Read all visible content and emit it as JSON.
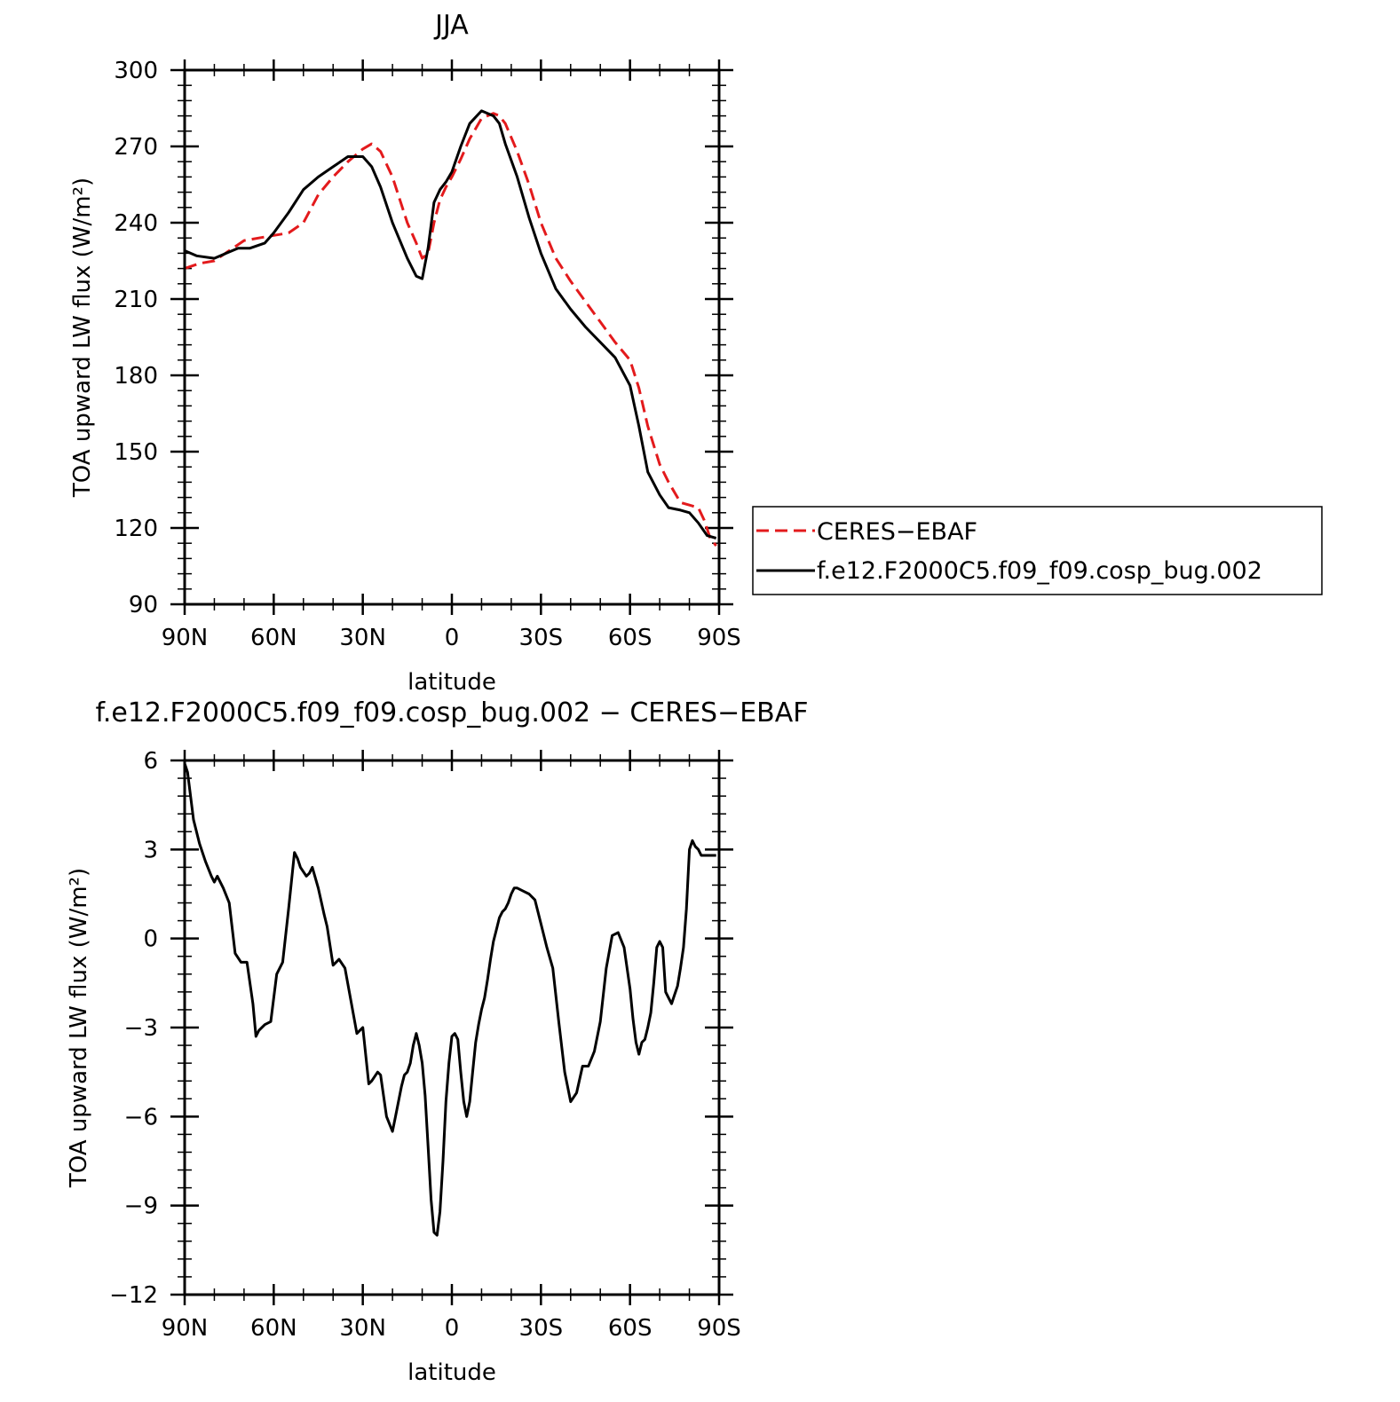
{
  "chart_data": [
    {
      "type": "line",
      "title": "JJA",
      "xlabel": "latitude",
      "ylabel": "TOA upward LW flux (W/m²)",
      "xlim": [
        90,
        -90
      ],
      "ylim": [
        90,
        300
      ],
      "xticks": [
        90,
        60,
        30,
        0,
        -30,
        -60,
        -90
      ],
      "xtick_labels": [
        "90N",
        "60N",
        "30N",
        "0",
        "30S",
        "60S",
        "90S"
      ],
      "yticks": [
        90,
        120,
        150,
        180,
        210,
        240,
        270,
        300
      ],
      "ytick_labels": [
        "90",
        "120",
        "150",
        "180",
        "210",
        "240",
        "270",
        "300"
      ],
      "legend": {
        "placement": "right",
        "entries": [
          "CERES−EBAF",
          "f.e12.F2000C5.f09_f09.cosp_bug.002"
        ]
      },
      "series": [
        {
          "name": "CERES−EBAF",
          "color": "#e31a1c",
          "style": "dashed",
          "x": [
            90,
            85,
            80,
            75,
            70,
            65,
            60,
            55,
            50,
            45,
            40,
            35,
            30,
            27,
            24,
            20,
            15,
            12,
            10,
            8,
            6,
            4,
            2,
            0,
            -3,
            -6,
            -10,
            -14,
            -16,
            -18,
            -22,
            -26,
            -30,
            -35,
            -40,
            -45,
            -50,
            -55,
            -60,
            -63,
            -66,
            -70,
            -73,
            -77,
            -80,
            -83,
            -85,
            -87,
            -89
          ],
          "y": [
            222,
            224,
            225,
            229,
            233,
            234,
            235,
            236,
            240,
            251,
            258,
            264,
            269,
            271,
            268,
            258,
            240,
            232,
            226,
            228,
            240,
            249,
            254,
            258,
            265,
            273,
            281,
            283,
            282,
            279,
            268,
            255,
            240,
            226,
            217,
            209,
            201,
            193,
            186,
            175,
            160,
            145,
            138,
            130,
            129,
            128,
            123,
            116,
            113
          ]
        },
        {
          "name": "f.e12.F2000C5.f09_f09.cosp_bug.002",
          "color": "#000000",
          "style": "solid",
          "x": [
            90,
            86,
            80,
            76,
            72,
            68,
            63,
            60,
            55,
            50,
            45,
            40,
            35,
            30,
            27,
            24,
            20,
            15,
            12,
            10,
            8,
            6,
            4,
            2,
            0,
            -3,
            -6,
            -10,
            -14,
            -16,
            -18,
            -22,
            -26,
            -30,
            -35,
            -40,
            -45,
            -50,
            -55,
            -60,
            -63,
            -66,
            -70,
            -73,
            -77,
            -80,
            -83,
            -86,
            -89
          ],
          "y": [
            229,
            227,
            226,
            228,
            230,
            230,
            232,
            236,
            244,
            253,
            258,
            262,
            266,
            266,
            262,
            254,
            240,
            226,
            219,
            218,
            230,
            248,
            253,
            256,
            260,
            270,
            279,
            284,
            282,
            279,
            271,
            258,
            242,
            228,
            214,
            206,
            199,
            193,
            187,
            176,
            160,
            142,
            133,
            128,
            127,
            126,
            122,
            117,
            116
          ]
        }
      ]
    },
    {
      "type": "line",
      "title": "f.e12.F2000C5.f09_f09.cosp_bug.002 − CERES−EBAF",
      "xlabel": "latitude",
      "ylabel": "TOA upward LW flux (W/m²)",
      "xlim": [
        90,
        -90
      ],
      "ylim": [
        -12,
        6
      ],
      "xticks": [
        90,
        60,
        30,
        0,
        -30,
        -60,
        -90
      ],
      "xtick_labels": [
        "90N",
        "60N",
        "30N",
        "0",
        "30S",
        "60S",
        "90S"
      ],
      "yticks": [
        -12,
        -9,
        -6,
        -3,
        0,
        3,
        6
      ],
      "ytick_labels": [
        "−12",
        "−9",
        "−6",
        "−3",
        "0",
        "3",
        "6"
      ],
      "series": [
        {
          "color": "#000000",
          "style": "solid",
          "x": [
            90,
            89,
            87,
            85,
            83,
            81,
            80,
            79,
            77,
            75,
            73,
            71,
            69,
            67,
            66,
            65,
            63,
            61,
            59,
            57,
            55,
            53,
            52,
            51,
            49,
            48,
            47,
            45,
            43,
            42,
            40,
            38,
            36,
            34,
            32,
            31,
            30,
            28,
            27,
            25,
            24,
            22,
            20,
            19,
            17,
            16,
            15,
            14,
            13,
            12,
            11,
            10,
            9,
            8,
            7,
            6,
            5,
            4,
            3,
            2,
            1,
            0,
            -1,
            -2,
            -3,
            -4,
            -5,
            -6,
            -7,
            -8,
            -9,
            -10,
            -11,
            -12,
            -13,
            -14,
            -15,
            -16,
            -17,
            -18,
            -19,
            -20,
            -21,
            -22,
            -24,
            -26,
            -28,
            -30,
            -32,
            -34,
            -36,
            -38,
            -40,
            -42,
            -44,
            -46,
            -48,
            -50,
            -52,
            -54,
            -56,
            -58,
            -60,
            -61,
            -62,
            -63,
            -64,
            -65,
            -66,
            -67,
            -68,
            -69,
            -70,
            -71,
            -72,
            -73,
            -74,
            -75,
            -76,
            -77,
            -78,
            -79,
            -80,
            -81,
            -82,
            -83,
            -84,
            -85,
            -86,
            -87,
            -88,
            -89
          ],
          "y": [
            5.9,
            5.6,
            4.0,
            3.2,
            2.6,
            2.1,
            1.9,
            2.1,
            1.7,
            1.2,
            -0.5,
            -0.8,
            -0.8,
            -2.2,
            -3.3,
            -3.1,
            -2.9,
            -2.8,
            -1.2,
            -0.8,
            1.0,
            2.9,
            2.7,
            2.4,
            2.1,
            2.2,
            2.4,
            1.7,
            0.8,
            0.4,
            -0.9,
            -0.7,
            -1.0,
            -2.1,
            -3.2,
            -3.1,
            -3.0,
            -4.9,
            -4.8,
            -4.5,
            -4.6,
            -6.0,
            -6.5,
            -6.0,
            -5.0,
            -4.6,
            -4.5,
            -4.2,
            -3.6,
            -3.2,
            -3.6,
            -4.2,
            -5.3,
            -7.0,
            -8.8,
            -9.9,
            -10.0,
            -9.2,
            -7.5,
            -5.5,
            -4.2,
            -3.3,
            -3.2,
            -3.4,
            -4.5,
            -5.5,
            -6.0,
            -5.5,
            -4.5,
            -3.5,
            -2.9,
            -2.4,
            -2.0,
            -1.4,
            -0.7,
            -0.1,
            0.3,
            0.7,
            0.9,
            1.0,
            1.2,
            1.5,
            1.7,
            1.7,
            1.6,
            1.5,
            1.3,
            0.5,
            -0.3,
            -1.0,
            -2.8,
            -4.5,
            -5.5,
            -5.2,
            -4.3,
            -4.3,
            -3.8,
            -2.8,
            -1.0,
            0.1,
            0.2,
            -0.3,
            -1.7,
            -2.7,
            -3.5,
            -3.9,
            -3.5,
            -3.4,
            -3.0,
            -2.5,
            -1.5,
            -0.3,
            -0.1,
            -0.3,
            -1.8,
            -2.0,
            -2.2,
            -1.9,
            -1.6,
            -1.0,
            -0.3,
            1.0,
            3.0,
            3.3,
            3.1,
            3.0,
            2.8,
            2.8,
            2.8,
            2.8,
            2.8,
            2.8
          ]
        }
      ]
    }
  ]
}
